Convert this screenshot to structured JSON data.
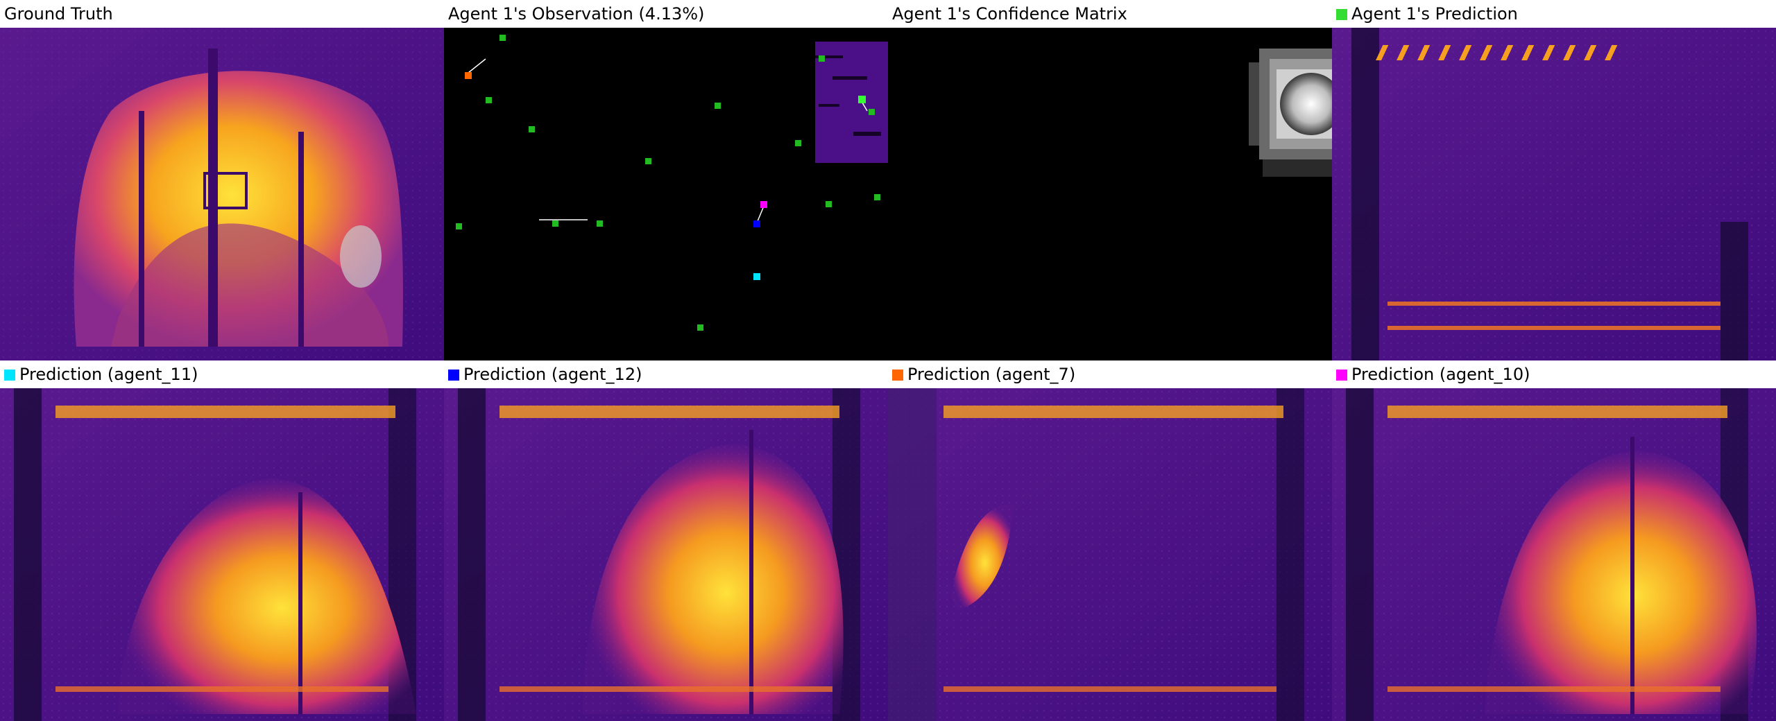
{
  "panels": {
    "gt": {
      "title": "Ground Truth"
    },
    "obs": {
      "title": "Agent 1's Observation (4.13%)"
    },
    "conf": {
      "title": "Agent 1's Confidence Matrix"
    },
    "pred": {
      "title": "Agent 1's Prediction",
      "swatch_color": "#33dd33"
    },
    "p11": {
      "title": "Prediction (agent_11)",
      "swatch_color": "#00e5ff"
    },
    "p12": {
      "title": "Prediction (agent_12)",
      "swatch_color": "#0000ff"
    },
    "p7": {
      "title": "Prediction (agent_7)",
      "swatch_color": "#ff6600"
    },
    "p10": {
      "title": "Prediction (agent_10)",
      "swatch_color": "#ff00ff"
    }
  },
  "colors": {
    "background_purple": "#4b1088",
    "heat_orange": "#f08a18",
    "heat_yellow": "#ffd830",
    "agent_green": "#22bb22",
    "black": "#000000"
  },
  "icons": {
    "agent_marker": "agent-marker-icon",
    "swatch": "color-swatch-icon"
  }
}
